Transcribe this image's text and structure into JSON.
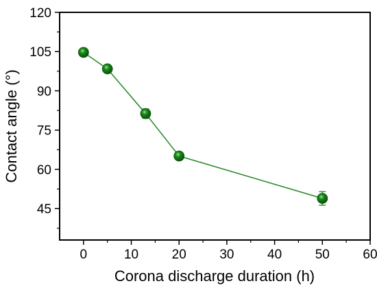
{
  "chart_data": {
    "type": "scatter",
    "title": "",
    "xlabel": "Corona discharge duration (h)",
    "ylabel": "Contact angle (°)",
    "xlim": [
      -5,
      60
    ],
    "ylim": [
      33,
      120
    ],
    "xticks": [
      0,
      10,
      20,
      30,
      40,
      50,
      60
    ],
    "xtick_labels": [
      "0",
      "10",
      "20",
      "30",
      "40",
      "50",
      "60"
    ],
    "yticks": [
      45,
      60,
      75,
      90,
      105,
      120
    ],
    "ytick_labels": [
      "45",
      "60",
      "75",
      "90",
      "105",
      "120"
    ],
    "grid": false,
    "legend": "none",
    "marker_color": "#1a8a1a",
    "line_color": "#2e8b2e",
    "series": [
      {
        "x": [
          0,
          5,
          13,
          20,
          50
        ],
        "y": [
          104.7,
          98.4,
          81.3,
          65.1,
          48.9
        ],
        "yerr": [
          1.0,
          1.0,
          1.8,
          0.8,
          2.6
        ]
      }
    ]
  }
}
